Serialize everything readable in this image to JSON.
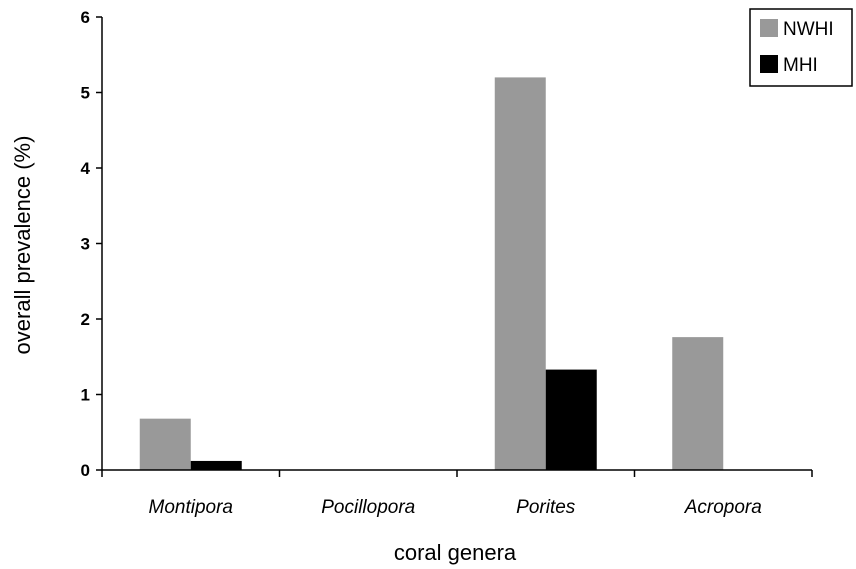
{
  "chart_data": {
    "type": "bar",
    "categories": [
      "Montipora",
      "Pocillopora",
      "Porites",
      "Acropora"
    ],
    "series": [
      {
        "name": "NWHI",
        "values": [
          0.68,
          0,
          5.2,
          1.76
        ],
        "color": "#999999"
      },
      {
        "name": "MHI",
        "values": [
          0.12,
          0,
          1.33,
          0
        ],
        "color": "#000000"
      }
    ],
    "xlabel": "coral genera",
    "ylabel": "overall prevalence (%)",
    "ylim": [
      0,
      6
    ],
    "yticks": [
      "0",
      "1",
      "2",
      "3",
      "4",
      "5",
      "6"
    ],
    "grid": false,
    "legend_position": "top-right"
  }
}
